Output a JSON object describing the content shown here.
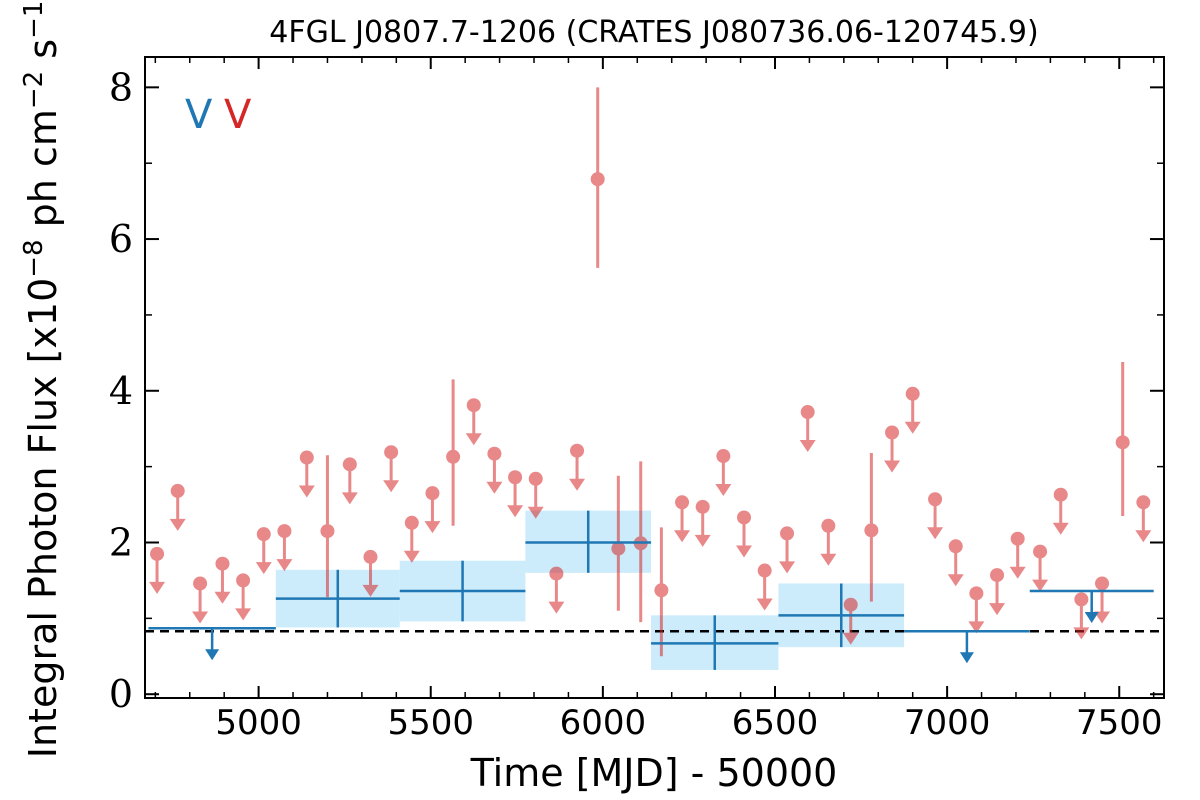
{
  "colors": {
    "blue": "#1f77b4",
    "red": "#d62728",
    "red_light": "#e8828a",
    "band": "#ccebfb",
    "baseline": "#000000"
  },
  "chart_data": {
    "type": "scatter",
    "title": "4FGL J0807.7-1206 (CRATES J080736.06-120745.9)",
    "xlabel": "Time [MJD] - 50000",
    "ylabel": "Integral Photon Flux [x10^{-8} ph cm^{-2} s^{-1}]",
    "xlim": [
      4670,
      7630
    ],
    "ylim": [
      -0.05,
      8.4
    ],
    "x_ticks": [
      5000,
      5500,
      6000,
      6500,
      7000,
      7500
    ],
    "y_ticks": [
      0,
      2,
      4,
      6,
      8
    ],
    "legend": {
      "position": "top-left",
      "entries": [
        {
          "label": "V",
          "color": "blue"
        },
        {
          "label": "V",
          "color": "red"
        }
      ]
    },
    "baseline": 0.83,
    "series": [
      {
        "color": "blue",
        "bins": [
          {
            "x0": 4680,
            "x1": 5050,
            "y": 0.87,
            "upper_limit": true
          },
          {
            "x0": 5050,
            "x1": 5410,
            "y": 1.26,
            "lo": 0.88,
            "hi": 1.64
          },
          {
            "x0": 5410,
            "x1": 5775,
            "y": 1.36,
            "lo": 0.96,
            "hi": 1.76
          },
          {
            "x0": 5775,
            "x1": 6140,
            "y": 2.0,
            "lo": 1.6,
            "hi": 2.42
          },
          {
            "x0": 6140,
            "x1": 6510,
            "y": 0.67,
            "lo": 0.32,
            "hi": 1.04
          },
          {
            "x0": 6510,
            "x1": 6875,
            "y": 1.04,
            "lo": 0.62,
            "hi": 1.46
          },
          {
            "x0": 6875,
            "x1": 7240,
            "y": 0.83,
            "upper_limit": true
          },
          {
            "x0": 7240,
            "x1": 7600,
            "y": 1.36,
            "upper_limit": true
          }
        ]
      },
      {
        "color": "red",
        "points": [
          {
            "x": 4705,
            "y": 1.85,
            "upper_limit": true
          },
          {
            "x": 4765,
            "y": 2.68,
            "upper_limit": true
          },
          {
            "x": 4830,
            "y": 1.46,
            "upper_limit": true
          },
          {
            "x": 4895,
            "y": 1.72,
            "upper_limit": true
          },
          {
            "x": 4955,
            "y": 1.5,
            "upper_limit": true
          },
          {
            "x": 5015,
            "y": 2.11,
            "upper_limit": true
          },
          {
            "x": 5075,
            "y": 2.15,
            "upper_limit": true
          },
          {
            "x": 5140,
            "y": 3.12,
            "upper_limit": true
          },
          {
            "x": 5200,
            "y": 2.15,
            "lo": 1.28,
            "hi": 3.15
          },
          {
            "x": 5265,
            "y": 3.03,
            "upper_limit": true
          },
          {
            "x": 5325,
            "y": 1.81,
            "upper_limit": true
          },
          {
            "x": 5385,
            "y": 3.19,
            "upper_limit": true
          },
          {
            "x": 5445,
            "y": 2.26,
            "upper_limit": true
          },
          {
            "x": 5505,
            "y": 2.65,
            "upper_limit": true
          },
          {
            "x": 5565,
            "y": 3.13,
            "lo": 2.22,
            "hi": 4.15
          },
          {
            "x": 5625,
            "y": 3.81,
            "upper_limit": true
          },
          {
            "x": 5685,
            "y": 3.17,
            "upper_limit": true
          },
          {
            "x": 5745,
            "y": 2.86,
            "upper_limit": true
          },
          {
            "x": 5805,
            "y": 2.84,
            "upper_limit": true
          },
          {
            "x": 5865,
            "y": 1.59,
            "upper_limit": true
          },
          {
            "x": 5925,
            "y": 3.21,
            "upper_limit": true
          },
          {
            "x": 5985,
            "y": 6.79,
            "lo": 5.62,
            "hi": 8.0
          },
          {
            "x": 6045,
            "y": 1.92,
            "lo": 1.1,
            "hi": 2.88
          },
          {
            "x": 6110,
            "y": 1.99,
            "lo": 0.95,
            "hi": 3.07
          },
          {
            "x": 6170,
            "y": 1.37,
            "lo": 0.5,
            "hi": 2.2
          },
          {
            "x": 6230,
            "y": 2.53,
            "upper_limit": true
          },
          {
            "x": 6290,
            "y": 2.47,
            "upper_limit": true
          },
          {
            "x": 6350,
            "y": 3.14,
            "upper_limit": true
          },
          {
            "x": 6410,
            "y": 2.33,
            "upper_limit": true
          },
          {
            "x": 6470,
            "y": 1.63,
            "upper_limit": true
          },
          {
            "x": 6535,
            "y": 2.12,
            "upper_limit": true
          },
          {
            "x": 6595,
            "y": 3.72,
            "upper_limit": true
          },
          {
            "x": 6655,
            "y": 2.22,
            "upper_limit": true
          },
          {
            "x": 6720,
            "y": 1.18,
            "upper_limit": true
          },
          {
            "x": 6780,
            "y": 2.16,
            "lo": 1.22,
            "hi": 3.18
          },
          {
            "x": 6840,
            "y": 3.45,
            "upper_limit": true
          },
          {
            "x": 6900,
            "y": 3.96,
            "upper_limit": true
          },
          {
            "x": 6965,
            "y": 2.57,
            "upper_limit": true
          },
          {
            "x": 7025,
            "y": 1.95,
            "upper_limit": true
          },
          {
            "x": 7085,
            "y": 1.33,
            "upper_limit": true
          },
          {
            "x": 7145,
            "y": 1.57,
            "upper_limit": true
          },
          {
            "x": 7205,
            "y": 2.05,
            "upper_limit": true
          },
          {
            "x": 7270,
            "y": 1.88,
            "upper_limit": true
          },
          {
            "x": 7330,
            "y": 2.63,
            "upper_limit": true
          },
          {
            "x": 7390,
            "y": 1.25,
            "upper_limit": true
          },
          {
            "x": 7450,
            "y": 1.46,
            "upper_limit": true
          },
          {
            "x": 7510,
            "y": 3.32,
            "lo": 2.35,
            "hi": 4.38
          },
          {
            "x": 7570,
            "y": 2.53,
            "upper_limit": true
          }
        ]
      }
    ]
  }
}
